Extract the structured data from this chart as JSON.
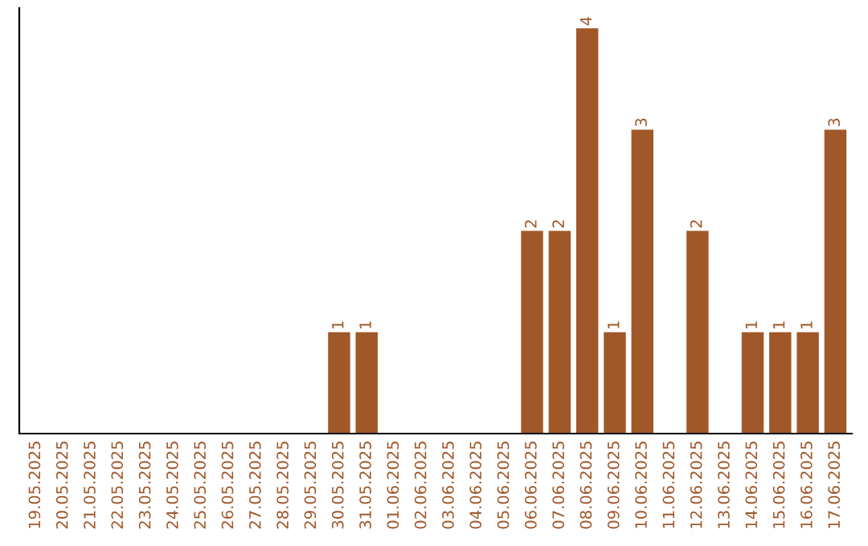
{
  "chart_data": {
    "type": "bar",
    "categories": [
      "19.05.2025",
      "20.05.2025",
      "21.05.2025",
      "22.05.2025",
      "23.05.2025",
      "24.05.2025",
      "25.05.2025",
      "26.05.2025",
      "27.05.2025",
      "28.05.2025",
      "29.05.2025",
      "30.05.2025",
      "31.05.2025",
      "01.06.2025",
      "02.06.2025",
      "03.06.2025",
      "04.06.2025",
      "05.06.2025",
      "06.06.2025",
      "07.06.2025",
      "08.06.2025",
      "09.06.2025",
      "10.06.2025",
      "11.06.2025",
      "12.06.2025",
      "13.06.2025",
      "14.06.2025",
      "15.06.2025",
      "16.06.2025",
      "17.06.2025"
    ],
    "values": [
      0,
      0,
      0,
      0,
      0,
      0,
      0,
      0,
      0,
      0,
      0,
      1,
      1,
      0,
      0,
      0,
      0,
      0,
      2,
      2,
      4,
      1,
      3,
      0,
      2,
      0,
      1,
      1,
      1,
      3
    ],
    "value_labels": [
      null,
      null,
      null,
      null,
      null,
      null,
      null,
      null,
      null,
      null,
      null,
      "1",
      "1",
      null,
      null,
      null,
      null,
      null,
      "2",
      "2",
      "4",
      "1",
      "3",
      null,
      "2",
      null,
      "1",
      "1",
      "1",
      "3"
    ],
    "color": "#a0582a",
    "grid": false
  }
}
